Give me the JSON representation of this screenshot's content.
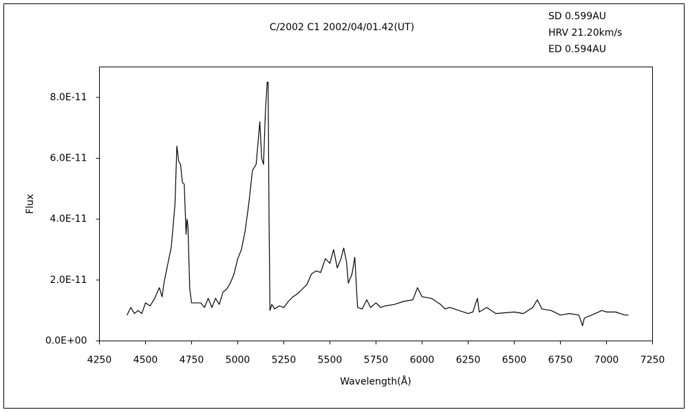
{
  "chart_data": {
    "type": "line",
    "title": "C/2002 C1    2002/04/01.42(UT)",
    "annotations": [
      "SD 0.599AU",
      "HRV 21.20km/s",
      "ED 0.594AU"
    ],
    "xlabel": "Wavelength(Å)",
    "ylabel": "Flux",
    "xlim": [
      4250,
      7250
    ],
    "xticks": [
      4250,
      4500,
      4750,
      5000,
      5250,
      5500,
      5750,
      6000,
      6250,
      6500,
      6750,
      7000,
      7250
    ],
    "ylim": [
      0,
      9e-11
    ],
    "yticks": [
      {
        "value": 0,
        "label": "0.0E+00"
      },
      {
        "value": 2e-11,
        "label": "2.0E-11"
      },
      {
        "value": 4e-11,
        "label": "4.0E-11"
      },
      {
        "value": 6e-11,
        "label": "6.0E-11"
      },
      {
        "value": 8e-11,
        "label": "8.0E-11"
      }
    ],
    "grid": false,
    "color": "#000000",
    "x": [
      4400,
      4420,
      4440,
      4460,
      4480,
      4500,
      4525,
      4550,
      4575,
      4590,
      4600,
      4620,
      4640,
      4660,
      4670,
      4680,
      4690,
      4700,
      4710,
      4720,
      4725,
      4730,
      4740,
      4750,
      4775,
      4800,
      4820,
      4840,
      4860,
      4880,
      4900,
      4920,
      4940,
      4960,
      4980,
      5000,
      5020,
      5040,
      5060,
      5080,
      5100,
      5120,
      5130,
      5140,
      5150,
      5160,
      5165,
      5170,
      5175,
      5185,
      5200,
      5225,
      5250,
      5275,
      5300,
      5325,
      5350,
      5375,
      5400,
      5425,
      5450,
      5475,
      5500,
      5520,
      5540,
      5560,
      5575,
      5590,
      5600,
      5620,
      5635,
      5650,
      5675,
      5700,
      5720,
      5750,
      5775,
      5800,
      5850,
      5900,
      5950,
      5975,
      6000,
      6050,
      6100,
      6125,
      6150,
      6200,
      6250,
      6275,
      6300,
      6310,
      6350,
      6400,
      6500,
      6550,
      6600,
      6625,
      6650,
      6700,
      6750,
      6800,
      6850,
      6870,
      6880,
      6920,
      6975,
      7000,
      7050,
      7100,
      7120
    ],
    "values": [
      8.5e-12,
      1.1e-11,
      9e-12,
      1e-11,
      9e-12,
      1.25e-11,
      1.15e-11,
      1.4e-11,
      1.75e-11,
      1.45e-11,
      1.9e-11,
      2.5e-11,
      3.1e-11,
      4.5e-11,
      6.4e-11,
      5.9e-11,
      5.8e-11,
      5.2e-11,
      5.15e-11,
      3.5e-11,
      4e-11,
      3.8e-11,
      1.7e-11,
      1.25e-11,
      1.25e-11,
      1.25e-11,
      1.1e-11,
      1.4e-11,
      1.1e-11,
      1.4e-11,
      1.2e-11,
      1.6e-11,
      1.7e-11,
      1.9e-11,
      2.2e-11,
      2.7e-11,
      3e-11,
      3.6e-11,
      4.5e-11,
      5.6e-11,
      5.8e-11,
      7.2e-11,
      6e-11,
      5.8e-11,
      7.5e-11,
      8.5e-11,
      8.5e-11,
      4e-11,
      1e-11,
      1.2e-11,
      1.05e-11,
      1.15e-11,
      1.1e-11,
      1.3e-11,
      1.45e-11,
      1.55e-11,
      1.7e-11,
      1.85e-11,
      2.2e-11,
      2.3e-11,
      2.25e-11,
      2.7e-11,
      2.55e-11,
      3e-11,
      2.4e-11,
      2.7e-11,
      3.05e-11,
      2.6e-11,
      1.9e-11,
      2.2e-11,
      2.75e-11,
      1.1e-11,
      1.05e-11,
      1.35e-11,
      1.1e-11,
      1.25e-11,
      1.1e-11,
      1.15e-11,
      1.2e-11,
      1.3e-11,
      1.35e-11,
      1.75e-11,
      1.45e-11,
      1.4e-11,
      1.2e-11,
      1.05e-11,
      1.1e-11,
      1e-11,
      9e-12,
      9.5e-12,
      1.4e-11,
      9.5e-12,
      1.1e-11,
      9e-12,
      9.5e-12,
      9e-12,
      1.1e-11,
      1.35e-11,
      1.05e-11,
      1e-11,
      8.5e-12,
      9e-12,
      8.5e-12,
      5e-12,
      7.5e-12,
      8.5e-12,
      1e-11,
      9.5e-12,
      9.5e-12,
      8.5e-12,
      8.5e-12
    ]
  }
}
